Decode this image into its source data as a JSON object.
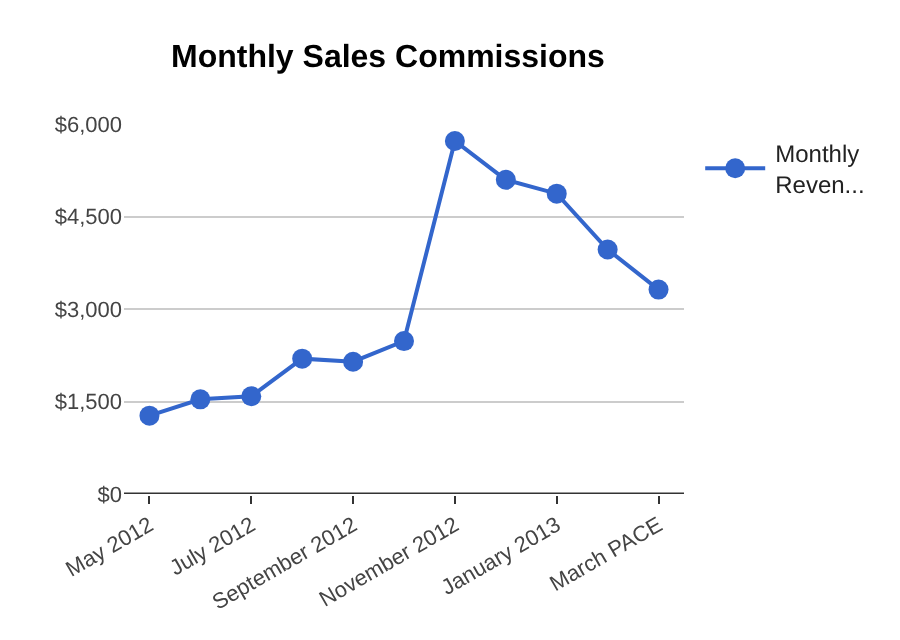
{
  "chart_data": {
    "type": "line",
    "title": "Monthly Sales Commissions",
    "categories": [
      "May 2012",
      null,
      "July 2012",
      null,
      "September 2012",
      null,
      "November 2012",
      null,
      "January 2013",
      null,
      "March PACE"
    ],
    "series": [
      {
        "name": "Monthly\nReven...",
        "color": "#3366cc",
        "values": [
          1270,
          1535,
          1585,
          2195,
          2145,
          2480,
          5725,
          5095,
          4870,
          3965,
          3315
        ]
      }
    ],
    "ylim": [
      0,
      6000
    ],
    "yticks": [
      {
        "value": 0,
        "label": "$0"
      },
      {
        "value": 1500,
        "label": "$1,500"
      },
      {
        "value": 3000,
        "label": "$3,000"
      },
      {
        "value": 4500,
        "label": "$4,500"
      },
      {
        "value": 6000,
        "label": "$6,000"
      }
    ],
    "grid": "y",
    "legend": "top right",
    "marker": "circle",
    "line_style": "solid"
  }
}
